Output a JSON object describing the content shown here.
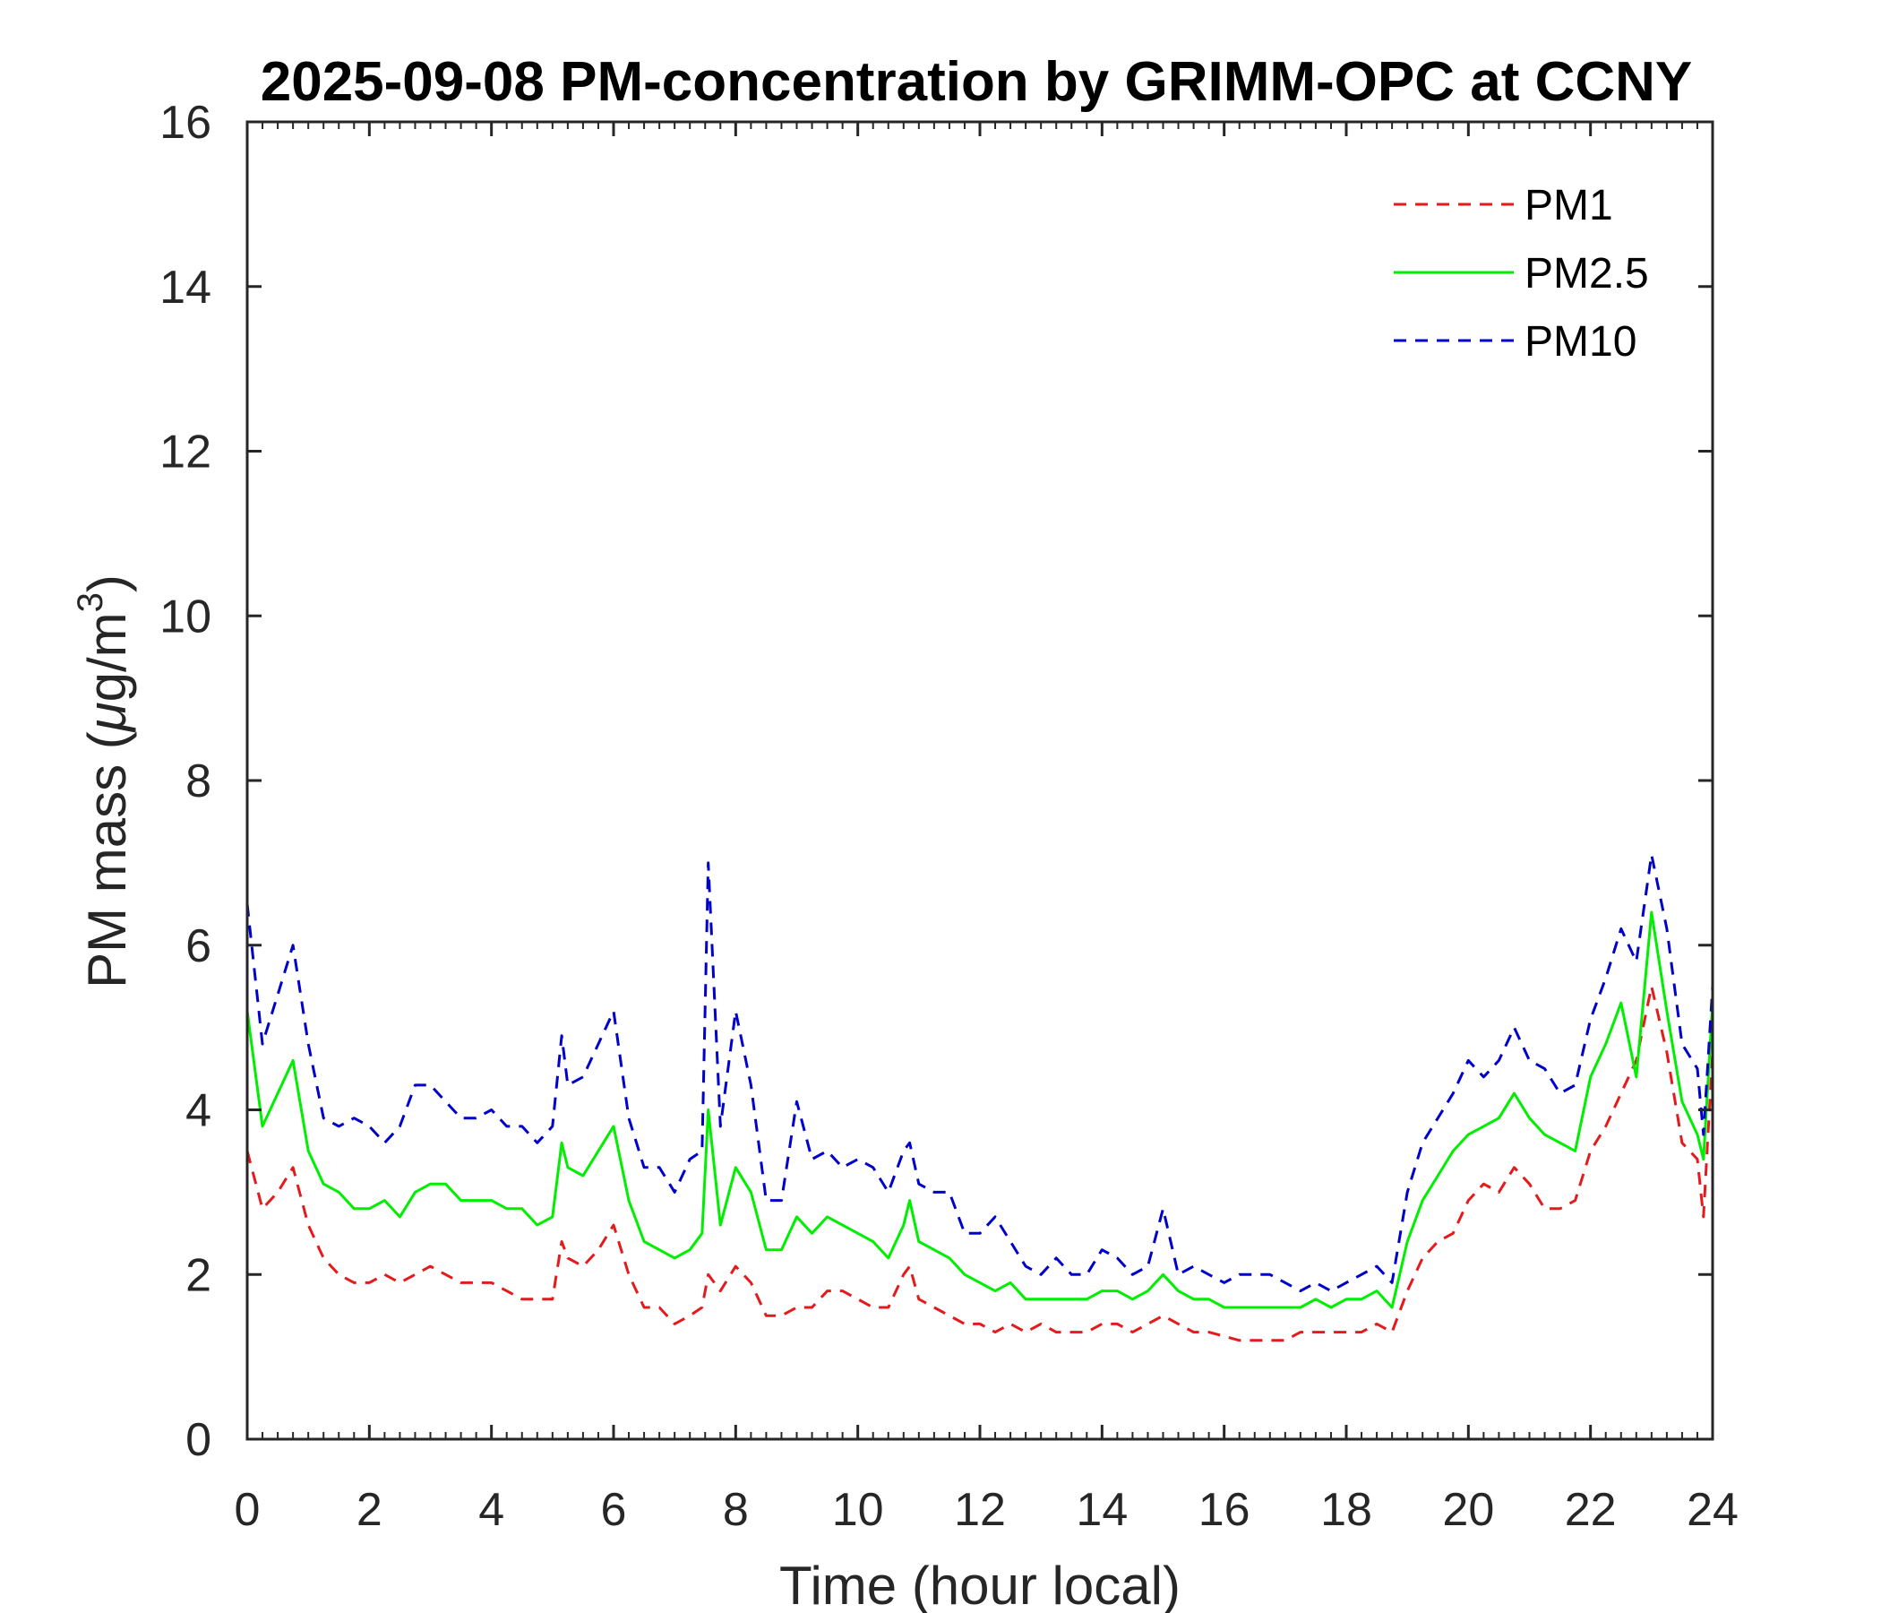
{
  "chart_data": {
    "type": "line",
    "title": "2025-09-08 PM-concentration by GRIMM-OPC at CCNY",
    "xlabel": "Time (hour local)",
    "ylabel_main": "PM mass (",
    "ylabel_mu": "μ",
    "ylabel_unit": "g/m",
    "ylabel_sup": "3",
    "ylabel_close": ")",
    "xlim": [
      0,
      24
    ],
    "ylim": [
      0,
      16
    ],
    "xticks": [
      0,
      2,
      4,
      6,
      8,
      10,
      12,
      14,
      16,
      18,
      20,
      22,
      24
    ],
    "yticks": [
      0,
      2,
      4,
      6,
      8,
      10,
      12,
      14,
      16
    ],
    "legend_position": "top-right",
    "x": [
      0,
      0.25,
      0.5,
      0.75,
      1,
      1.25,
      1.5,
      1.75,
      2,
      2.25,
      2.5,
      2.75,
      3,
      3.25,
      3.5,
      3.75,
      4,
      4.25,
      4.5,
      4.75,
      5,
      5.15,
      5.25,
      5.5,
      5.75,
      6,
      6.25,
      6.5,
      6.75,
      7,
      7.25,
      7.45,
      7.55,
      7.75,
      8,
      8.25,
      8.5,
      8.75,
      9,
      9.25,
      9.5,
      9.75,
      10,
      10.25,
      10.5,
      10.75,
      10.85,
      11,
      11.25,
      11.5,
      11.75,
      12,
      12.25,
      12.5,
      12.75,
      13,
      13.25,
      13.5,
      13.75,
      14,
      14.25,
      14.5,
      14.75,
      15,
      15.25,
      15.5,
      15.75,
      16,
      16.25,
      16.5,
      16.75,
      17,
      17.25,
      17.5,
      17.75,
      18,
      18.25,
      18.5,
      18.75,
      19,
      19.25,
      19.5,
      19.75,
      20,
      20.25,
      20.5,
      20.75,
      21,
      21.25,
      21.5,
      21.75,
      22,
      22.25,
      22.5,
      22.75,
      23,
      23.25,
      23.5,
      23.75,
      23.85,
      24
    ],
    "series": [
      {
        "name": "PM1",
        "color": "#e41a1c",
        "dash": "dashed",
        "values": [
          3.5,
          2.8,
          3.0,
          3.3,
          2.6,
          2.2,
          2.0,
          1.9,
          1.9,
          2.0,
          1.9,
          2.0,
          2.1,
          2.0,
          1.9,
          1.9,
          1.9,
          1.8,
          1.7,
          1.7,
          1.7,
          2.4,
          2.2,
          2.1,
          2.3,
          2.6,
          2.0,
          1.6,
          1.6,
          1.4,
          1.5,
          1.6,
          2.0,
          1.8,
          2.1,
          1.9,
          1.5,
          1.5,
          1.6,
          1.6,
          1.8,
          1.8,
          1.7,
          1.6,
          1.6,
          2.0,
          2.1,
          1.7,
          1.6,
          1.5,
          1.4,
          1.4,
          1.3,
          1.4,
          1.3,
          1.4,
          1.3,
          1.3,
          1.3,
          1.4,
          1.4,
          1.3,
          1.4,
          1.5,
          1.4,
          1.3,
          1.3,
          1.25,
          1.2,
          1.2,
          1.2,
          1.2,
          1.3,
          1.3,
          1.3,
          1.3,
          1.3,
          1.4,
          1.3,
          1.8,
          2.2,
          2.4,
          2.5,
          2.9,
          3.1,
          3.0,
          3.3,
          3.1,
          2.8,
          2.8,
          2.9,
          3.5,
          3.8,
          4.2,
          4.6,
          5.5,
          4.7,
          3.6,
          3.4,
          2.7,
          4.7
        ]
      },
      {
        "name": "PM2.5",
        "color": "#00ee00",
        "dash": "solid",
        "values": [
          5.2,
          3.8,
          4.2,
          4.6,
          3.5,
          3.1,
          3.0,
          2.8,
          2.8,
          2.9,
          2.7,
          3.0,
          3.1,
          3.1,
          2.9,
          2.9,
          2.9,
          2.8,
          2.8,
          2.6,
          2.7,
          3.6,
          3.3,
          3.2,
          3.5,
          3.8,
          2.9,
          2.4,
          2.3,
          2.2,
          2.3,
          2.5,
          4.0,
          2.6,
          3.3,
          3.0,
          2.3,
          2.3,
          2.7,
          2.5,
          2.7,
          2.6,
          2.5,
          2.4,
          2.2,
          2.6,
          2.9,
          2.4,
          2.3,
          2.2,
          2.0,
          1.9,
          1.8,
          1.9,
          1.7,
          1.7,
          1.7,
          1.7,
          1.7,
          1.8,
          1.8,
          1.7,
          1.8,
          2.0,
          1.8,
          1.7,
          1.7,
          1.6,
          1.6,
          1.6,
          1.6,
          1.6,
          1.6,
          1.7,
          1.6,
          1.7,
          1.7,
          1.8,
          1.6,
          2.4,
          2.9,
          3.2,
          3.5,
          3.7,
          3.8,
          3.9,
          4.2,
          3.9,
          3.7,
          3.6,
          3.5,
          4.4,
          4.8,
          5.3,
          4.4,
          6.4,
          5.2,
          4.1,
          3.7,
          3.4,
          5.3
        ]
      },
      {
        "name": "PM10",
        "color": "#0000cc",
        "dash": "dashed",
        "values": [
          6.5,
          4.8,
          5.4,
          6.0,
          4.8,
          3.9,
          3.8,
          3.9,
          3.8,
          3.6,
          3.8,
          4.3,
          4.3,
          4.1,
          3.9,
          3.9,
          4.0,
          3.8,
          3.8,
          3.6,
          3.8,
          4.9,
          4.3,
          4.4,
          4.8,
          5.2,
          3.9,
          3.3,
          3.3,
          3.0,
          3.4,
          3.5,
          7.0,
          3.8,
          5.2,
          4.3,
          2.9,
          2.9,
          4.1,
          3.4,
          3.5,
          3.3,
          3.4,
          3.3,
          3.0,
          3.5,
          3.6,
          3.1,
          3.0,
          3.0,
          2.5,
          2.5,
          2.7,
          2.4,
          2.1,
          2.0,
          2.2,
          2.0,
          2.0,
          2.3,
          2.2,
          2.0,
          2.1,
          2.8,
          2.0,
          2.1,
          2.0,
          1.9,
          2.0,
          2.0,
          2.0,
          1.9,
          1.8,
          1.9,
          1.8,
          1.9,
          2.0,
          2.1,
          1.9,
          3.0,
          3.6,
          3.9,
          4.2,
          4.6,
          4.4,
          4.6,
          5.0,
          4.6,
          4.5,
          4.2,
          4.3,
          5.1,
          5.6,
          6.2,
          5.8,
          7.1,
          6.2,
          4.8,
          4.5,
          3.7,
          5.5
        ]
      }
    ]
  }
}
